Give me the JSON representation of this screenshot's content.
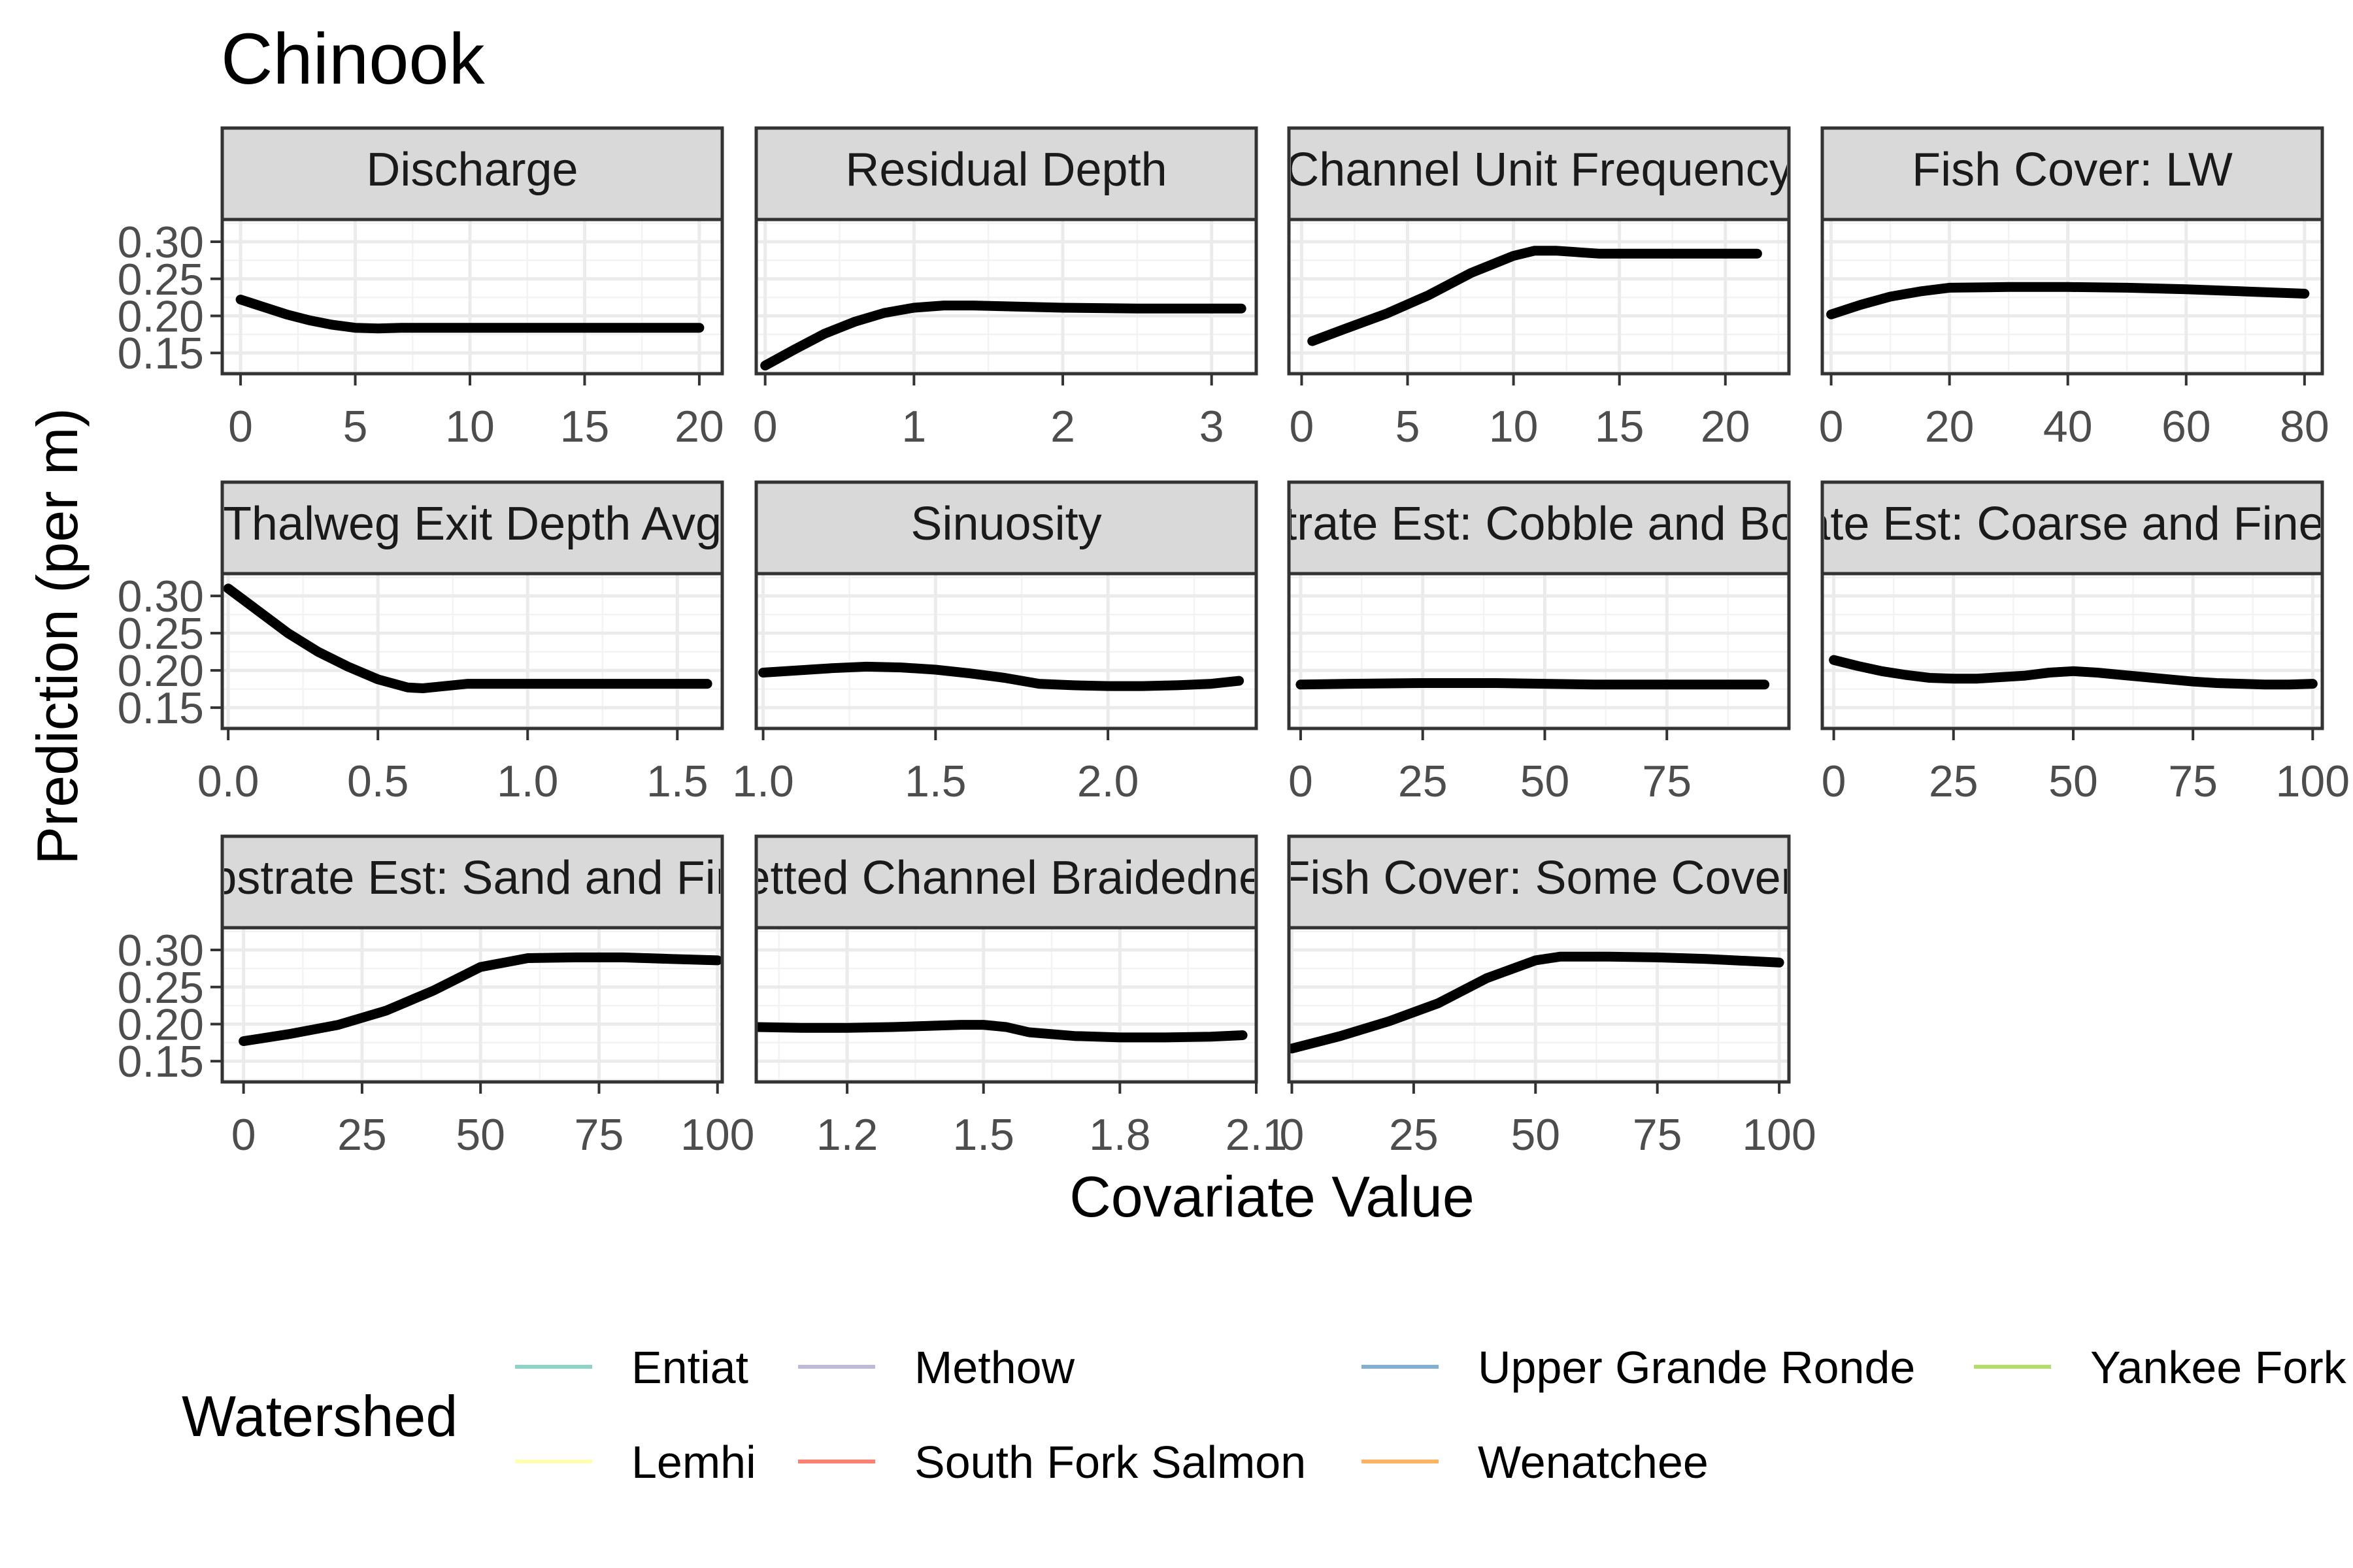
{
  "chart_data": {
    "type": "line",
    "title": "Chinook",
    "xlabel": "Covariate Value",
    "ylabel": "Prediction (per m)",
    "legend": {
      "title": "Watershed",
      "placement": "bottom",
      "entries": [
        {
          "name": "Entiat",
          "color": "#8dd3c7"
        },
        {
          "name": "Lemhi",
          "color": "#ffffb3"
        },
        {
          "name": "Methow",
          "color": "#bebada"
        },
        {
          "name": "South Fork Salmon",
          "color": "#fb8072"
        },
        {
          "name": "Upper Grande Ronde",
          "color": "#80b1d3"
        },
        {
          "name": "Wenatchee",
          "color": "#fdb462"
        },
        {
          "name": "Yankee Fork",
          "color": "#b3de69"
        }
      ]
    },
    "ylim": [
      0.122,
      0.33
    ],
    "yticks": [
      0.15,
      0.2,
      0.25,
      0.3
    ],
    "ytick_labels": [
      "0.15",
      "0.20",
      "0.25",
      "0.30"
    ],
    "grid": true,
    "panels": [
      {
        "name": "Discharge",
        "xlim": [
          -0.8,
          21
        ],
        "xticks": [
          0,
          5,
          10,
          15,
          20
        ],
        "xtick_labels": [
          "0",
          "5",
          "10",
          "15",
          "20"
        ],
        "x": [
          0,
          1,
          2,
          3,
          4,
          5,
          6,
          7,
          8,
          10,
          12,
          15,
          18,
          20
        ],
        "y": [
          0.222,
          0.212,
          0.202,
          0.194,
          0.188,
          0.184,
          0.183,
          0.184,
          0.184,
          0.184,
          0.184,
          0.184,
          0.184,
          0.184
        ]
      },
      {
        "name": "Residual Depth",
        "xlim": [
          -0.06,
          3.3
        ],
        "xticks": [
          0,
          1,
          2,
          3
        ],
        "xtick_labels": [
          "0",
          "1",
          "2",
          "3"
        ],
        "x": [
          0,
          0.2,
          0.4,
          0.6,
          0.8,
          1.0,
          1.2,
          1.4,
          1.6,
          2.0,
          2.5,
          3.0,
          3.2
        ],
        "y": [
          0.133,
          0.155,
          0.176,
          0.192,
          0.204,
          0.211,
          0.214,
          0.214,
          0.213,
          0.211,
          0.21,
          0.21,
          0.21
        ]
      },
      {
        "name": "Channel Unit Frequency",
        "xlim": [
          -0.6,
          23
        ],
        "xticks": [
          0,
          5,
          10,
          15,
          20
        ],
        "xtick_labels": [
          "0",
          "5",
          "10",
          "15",
          "20"
        ],
        "x": [
          0.5,
          2,
          4,
          6,
          8,
          10,
          11,
          12,
          14,
          17,
          20,
          21.5
        ],
        "y": [
          0.166,
          0.182,
          0.203,
          0.228,
          0.258,
          0.281,
          0.288,
          0.288,
          0.284,
          0.284,
          0.284,
          0.284
        ]
      },
      {
        "name": "Fish Cover: LW",
        "xlim": [
          -1.5,
          83
        ],
        "xticks": [
          0,
          20,
          40,
          60,
          80
        ],
        "xtick_labels": [
          "0",
          "20",
          "40",
          "60",
          "80"
        ],
        "x": [
          0,
          5,
          10,
          15,
          20,
          30,
          40,
          50,
          60,
          70,
          80
        ],
        "y": [
          0.202,
          0.215,
          0.226,
          0.233,
          0.238,
          0.239,
          0.239,
          0.238,
          0.236,
          0.233,
          0.23
        ]
      },
      {
        "name": "Thalweg Exit Depth Avg",
        "xlim": [
          -0.02,
          1.65
        ],
        "xticks": [
          0.0,
          0.5,
          1.0,
          1.5
        ],
        "xtick_labels": [
          "0.0",
          "0.5",
          "1.0",
          "1.5"
        ],
        "x": [
          0,
          0.1,
          0.2,
          0.3,
          0.4,
          0.5,
          0.6,
          0.65,
          0.7,
          0.8,
          1.0,
          1.2,
          1.4,
          1.6
        ],
        "y": [
          0.31,
          0.28,
          0.25,
          0.225,
          0.205,
          0.188,
          0.177,
          0.176,
          0.178,
          0.182,
          0.182,
          0.182,
          0.182,
          0.182
        ]
      },
      {
        "name": "Sinuosity",
        "xlim": [
          0.98,
          2.43
        ],
        "xticks": [
          1.0,
          1.5,
          2.0
        ],
        "xtick_labels": [
          "1.0",
          "1.5",
          "2.0"
        ],
        "x": [
          1.0,
          1.1,
          1.2,
          1.3,
          1.4,
          1.5,
          1.6,
          1.7,
          1.8,
          1.9,
          2.0,
          2.1,
          2.2,
          2.3,
          2.38
        ],
        "y": [
          0.197,
          0.2,
          0.203,
          0.205,
          0.204,
          0.201,
          0.196,
          0.19,
          0.182,
          0.18,
          0.179,
          0.179,
          0.18,
          0.182,
          0.186
        ]
      },
      {
        "name": "Substrate Est: Cobble and Boulder",
        "xlim": [
          -2.4,
          100
        ],
        "xticks": [
          0,
          25,
          50,
          75
        ],
        "xtick_labels": [
          "0",
          "25",
          "50",
          "75"
        ],
        "x": [
          0,
          10,
          25,
          40,
          50,
          60,
          75,
          85,
          95
        ],
        "y": [
          0.181,
          0.182,
          0.183,
          0.183,
          0.182,
          0.181,
          0.181,
          0.181,
          0.181
        ]
      },
      {
        "name": "Substrate Est: Coarse and Fine Gravel",
        "xlim": [
          -2.4,
          102
        ],
        "xticks": [
          0,
          25,
          50,
          75,
          100
        ],
        "xtick_labels": [
          "0",
          "25",
          "50",
          "75",
          "100"
        ],
        "x": [
          0,
          5,
          10,
          15,
          20,
          25,
          30,
          35,
          40,
          45,
          50,
          55,
          60,
          65,
          70,
          75,
          80,
          85,
          90,
          95,
          100
        ],
        "y": [
          0.214,
          0.206,
          0.199,
          0.194,
          0.19,
          0.189,
          0.189,
          0.191,
          0.193,
          0.197,
          0.199,
          0.197,
          0.194,
          0.191,
          0.188,
          0.185,
          0.183,
          0.182,
          0.181,
          0.181,
          0.182
        ]
      },
      {
        "name": "Substrate Est: Sand and Fines",
        "xlim": [
          -4.5,
          101
        ],
        "xticks": [
          0,
          25,
          50,
          75,
          100
        ],
        "xtick_labels": [
          "0",
          "25",
          "50",
          "75",
          "100"
        ],
        "x": [
          0,
          10,
          20,
          30,
          40,
          50,
          60,
          70,
          80,
          90,
          100
        ],
        "y": [
          0.177,
          0.187,
          0.199,
          0.218,
          0.245,
          0.277,
          0.289,
          0.29,
          0.29,
          0.288,
          0.286
        ]
      },
      {
        "name": "Wetted Channel Braidedness",
        "xlim": [
          1.0,
          2.1
        ],
        "xticks": [
          1.2,
          1.5,
          1.8,
          2.1
        ],
        "xtick_labels": [
          "1.2",
          "1.5",
          "1.8",
          "2.1"
        ],
        "x": [
          1.0,
          1.1,
          1.2,
          1.3,
          1.4,
          1.45,
          1.5,
          1.55,
          1.6,
          1.7,
          1.8,
          1.9,
          2.0,
          2.07
        ],
        "y": [
          0.196,
          0.195,
          0.195,
          0.196,
          0.198,
          0.199,
          0.199,
          0.196,
          0.189,
          0.184,
          0.182,
          0.182,
          0.183,
          0.185
        ]
      },
      {
        "name": "Fish Cover: Some Cover",
        "xlim": [
          -0.6,
          102
        ],
        "xticks": [
          0,
          25,
          50,
          75,
          100
        ],
        "xtick_labels": [
          "0",
          "25",
          "50",
          "75",
          "100"
        ],
        "x": [
          0,
          10,
          20,
          30,
          40,
          50,
          55,
          65,
          75,
          85,
          100
        ],
        "y": [
          0.167,
          0.184,
          0.204,
          0.228,
          0.262,
          0.286,
          0.291,
          0.291,
          0.29,
          0.288,
          0.283
        ]
      }
    ]
  }
}
